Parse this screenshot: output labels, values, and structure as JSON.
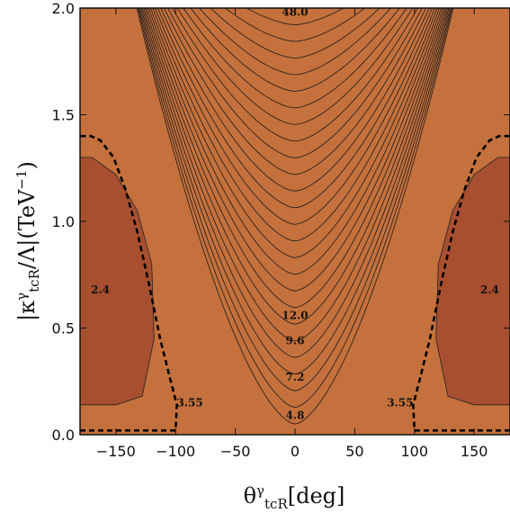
{
  "chart_data": {
    "type": "contour",
    "title": "",
    "xlabel": {
      "main": "θ",
      "sup": "γ",
      "sub": "tcR",
      "unit": "[deg]"
    },
    "ylabel": {
      "prefix": "|κ",
      "sup": "γ",
      "sub": "tcR",
      "mid": "/Λ|(TeV",
      "sup2": "−1",
      "suffix": ")"
    },
    "xlim": [
      -180,
      180
    ],
    "ylim": [
      0,
      2
    ],
    "x_ticks": [
      -150,
      -100,
      -50,
      0,
      50,
      100,
      150
    ],
    "x_tick_labels": [
      "−150",
      "−100",
      "−50",
      "0",
      "50",
      "100",
      "150"
    ],
    "y_ticks": [
      0,
      0.5,
      1,
      1.5,
      2
    ],
    "y_tick_labels": [
      "0.0",
      "0.5",
      "1.0",
      "1.5",
      "2.0"
    ],
    "contour_levels": [
      2.4,
      3.55,
      4.8,
      7.2,
      9.6,
      12.0,
      48.0
    ],
    "contour_labels": [
      {
        "text": "48.0",
        "x": 0,
        "y": 1.98
      },
      {
        "text": "12.0",
        "x": 0,
        "y": 0.56
      },
      {
        "text": "9.6",
        "x": 0,
        "y": 0.44
      },
      {
        "text": "7.2",
        "x": 0,
        "y": 0.27
      },
      {
        "text": "4.8",
        "x": 0,
        "y": 0.09
      },
      {
        "text": "3.55",
        "x": -88,
        "y": 0.15
      },
      {
        "text": "3.55",
        "x": 88,
        "y": 0.15
      },
      {
        "text": "2.4",
        "x": -163,
        "y": 0.68
      },
      {
        "text": "2.4",
        "x": 163,
        "y": 0.68
      }
    ],
    "dashed_contour": {
      "level": 3.55,
      "left": [
        [
          -180,
          0.02
        ],
        [
          -100,
          0.02
        ],
        [
          -99,
          0.14
        ],
        [
          -104,
          0.25
        ],
        [
          -113,
          0.45
        ],
        [
          -122,
          0.7
        ],
        [
          -132,
          0.95
        ],
        [
          -142,
          1.15
        ],
        [
          -152,
          1.3
        ],
        [
          -163,
          1.38
        ],
        [
          -171,
          1.4
        ],
        [
          -180,
          1.4
        ]
      ],
      "right": [
        [
          180,
          0.02
        ],
        [
          100,
          0.02
        ],
        [
          99,
          0.14
        ],
        [
          104,
          0.25
        ],
        [
          113,
          0.45
        ],
        [
          122,
          0.7
        ],
        [
          132,
          0.95
        ],
        [
          142,
          1.15
        ],
        [
          152,
          1.3
        ],
        [
          163,
          1.38
        ],
        [
          171,
          1.4
        ],
        [
          180,
          1.4
        ]
      ]
    },
    "colors": {
      "high": "#5f6b2c",
      "mid_high": "#c8b04a",
      "mid": "#f0c95a",
      "low": "#c5713d",
      "lowest": "#a84f30"
    }
  }
}
